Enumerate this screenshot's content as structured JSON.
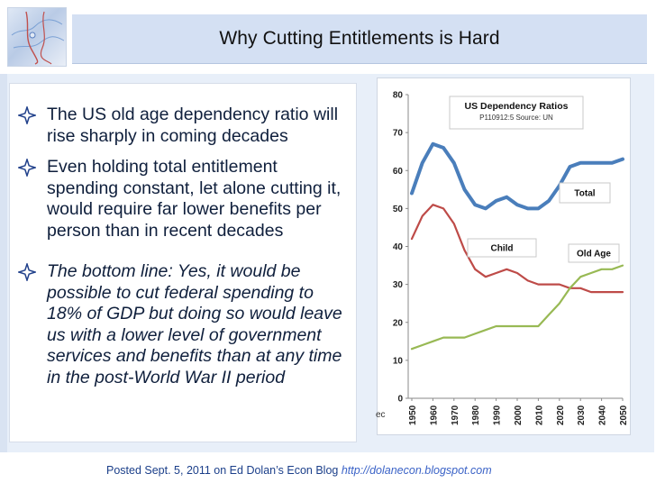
{
  "slide": {
    "title": "Why Cutting Entitlements is Hard",
    "bullets": [
      {
        "text": "The US old age dependency ratio will rise sharply in coming decades",
        "italic": false
      },
      {
        "text": "Even holding total entitlement spending constant, let alone cutting it, would require far lower benefits per person than in recent decades",
        "italic": false
      },
      {
        "text": "The bottom line: Yes, it would be possible to cut federal spending to 18% of GDP but doing so would leave us with a lower level of government services and benefits than at any time in the post-World War II period",
        "italic": true
      }
    ],
    "credit_text": "ec",
    "footer_text": "Posted Sept. 5, 2011 on Ed Dolan’s Econ Blog ",
    "footer_link": "http://dolanecon.blogspot.com",
    "bullet_icon": "diamond-sparkle-icon"
  },
  "chart_data": {
    "type": "line",
    "title": "US Dependency Ratios",
    "subtitle": "P110912:5 Source: UN",
    "x": [
      1950,
      1955,
      1960,
      1965,
      1970,
      1975,
      1980,
      1985,
      1990,
      1995,
      2000,
      2005,
      2010,
      2015,
      2020,
      2025,
      2030,
      2035,
      2040,
      2045,
      2050
    ],
    "x_tick_labels": [
      "1950",
      "1960",
      "1970",
      "1980",
      "1990",
      "2000",
      "2010",
      "2020",
      "2030",
      "2040",
      "2050"
    ],
    "y_tick_labels": [
      "0",
      "10",
      "20",
      "30",
      "40",
      "50",
      "60",
      "70",
      "80"
    ],
    "ylim": [
      0,
      80
    ],
    "grid": false,
    "series": [
      {
        "name": "Total",
        "color": "#4a7ebb",
        "width": 4,
        "values": [
          54,
          62,
          67,
          66,
          62,
          55,
          51,
          50,
          52,
          53,
          51,
          50,
          50,
          52,
          56,
          61,
          62,
          62,
          62,
          62,
          63
        ]
      },
      {
        "name": "Child",
        "color": "#be4b48",
        "width": 2.2,
        "values": [
          42,
          48,
          51,
          50,
          46,
          39,
          34,
          32,
          33,
          34,
          33,
          31,
          30,
          30,
          30,
          29,
          29,
          28,
          28,
          28,
          28
        ]
      },
      {
        "name": "Old Age",
        "color": "#98b954",
        "width": 2.2,
        "values": [
          13,
          14,
          15,
          16,
          16,
          16,
          17,
          18,
          19,
          19,
          19,
          19,
          19,
          22,
          25,
          29,
          32,
          33,
          34,
          34,
          35
        ]
      }
    ],
    "labels": [
      {
        "text": "Total",
        "series": "Total"
      },
      {
        "text": "Child",
        "series": "Child"
      },
      {
        "text": "Old Age",
        "series": "Old Age"
      }
    ]
  }
}
